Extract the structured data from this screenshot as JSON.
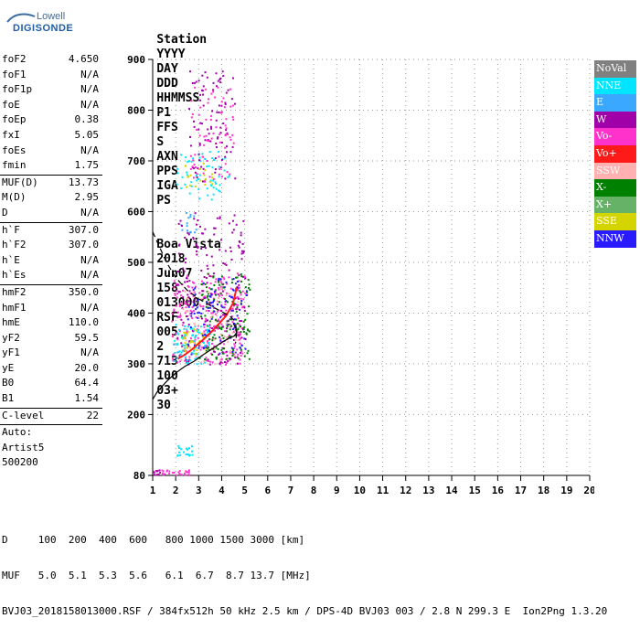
{
  "logo": {
    "line1": "Lowell",
    "line2": "DIGISONDE"
  },
  "header": {
    "row1": [
      {
        "label": "Station"
      },
      {
        "label": "YYYY"
      },
      {
        "label": "DAY"
      },
      {
        "label": "DDD"
      },
      {
        "label": "HHMMSS"
      },
      {
        "label": "P1"
      },
      {
        "label": "FFS"
      },
      {
        "label": "S"
      },
      {
        "label": "AXN"
      },
      {
        "label": "PPS"
      },
      {
        "label": "IGA"
      },
      {
        "label": "PS"
      }
    ],
    "row2": [
      {
        "label": "Boa Vista"
      },
      {
        "label": "2018"
      },
      {
        "label": "Jun07"
      },
      {
        "label": "158"
      },
      {
        "label": "013000"
      },
      {
        "label": "RSF"
      },
      {
        "label": "005"
      },
      {
        "label": "2"
      },
      {
        "label": "713"
      },
      {
        "label": "100"
      },
      {
        "label": "03+"
      },
      {
        "label": "30"
      }
    ]
  },
  "params_groups": [
    [
      {
        "name": "foF2",
        "value": "4.650"
      },
      {
        "name": "foF1",
        "value": "N/A"
      },
      {
        "name": "foF1p",
        "value": "N/A"
      },
      {
        "name": "foE",
        "value": "N/A"
      },
      {
        "name": "foEp",
        "value": "0.38"
      },
      {
        "name": "fxI",
        "value": "5.05"
      },
      {
        "name": "foEs",
        "value": "N/A"
      },
      {
        "name": "fmin",
        "value": "1.75"
      }
    ],
    [
      {
        "name": "MUF(D)",
        "value": "13.73"
      },
      {
        "name": "M(D)",
        "value": "2.95"
      },
      {
        "name": "D",
        "value": "N/A"
      }
    ],
    [
      {
        "name": "h`F",
        "value": "307.0"
      },
      {
        "name": "h`F2",
        "value": "307.0"
      },
      {
        "name": "h`E",
        "value": "N/A"
      },
      {
        "name": "h`Es",
        "value": "N/A"
      }
    ],
    [
      {
        "name": "hmF2",
        "value": "350.0"
      },
      {
        "name": "hmF1",
        "value": "N/A"
      },
      {
        "name": "hmE",
        "value": "110.0"
      },
      {
        "name": "yF2",
        "value": "59.5"
      },
      {
        "name": "yF1",
        "value": "N/A"
      },
      {
        "name": "yE",
        "value": "20.0"
      },
      {
        "name": "B0",
        "value": "64.4"
      },
      {
        "name": "B1",
        "value": "1.54"
      }
    ],
    [
      {
        "name": "C-level",
        "value": "22"
      }
    ],
    [
      {
        "name": "Auto:",
        "value": ""
      },
      {
        "name": "Artist5",
        "value": ""
      },
      {
        "name": "500200",
        "value": ""
      }
    ]
  ],
  "legend": [
    {
      "label": "NoVal",
      "color": "#808080"
    },
    {
      "label": "NNE",
      "color": "#00e5ff"
    },
    {
      "label": "E",
      "color": "#3aa8ff"
    },
    {
      "label": "W",
      "color": "#a000a8"
    },
    {
      "label": "Vo-",
      "color": "#ff33cc"
    },
    {
      "label": "Vo+",
      "color": "#ff1a1a"
    },
    {
      "label": "SSW",
      "color": "#ffb0b0"
    },
    {
      "label": "X-",
      "color": "#008000"
    },
    {
      "label": "X+",
      "color": "#66b266"
    },
    {
      "label": "SSE",
      "color": "#d4d400"
    },
    {
      "label": "NNW",
      "color": "#2a1aff"
    }
  ],
  "footer": {
    "line1": "D     100  200  400  600   800 1000 1500 3000 [km]",
    "line2": "MUF   5.0  5.1  5.3  5.6   6.1  6.7  8.7 13.7 [MHz]",
    "line3": "BVJ03_2018158013000.RSF / 384fx512h 50 kHz 2.5 km / DPS-4D BVJ03 003 / 2.8 N 299.3 E  Ion2Png 1.3.20"
  },
  "chart_data": {
    "type": "scatter",
    "title": "",
    "xlabel": "",
    "ylabel": "",
    "xlim": [
      1,
      20
    ],
    "ylim": [
      80,
      900
    ],
    "x_ticks": [
      1,
      2,
      3,
      4,
      5,
      6,
      7,
      8,
      9,
      10,
      11,
      12,
      13,
      14,
      15,
      16,
      17,
      18,
      19,
      20
    ],
    "y_ticks": [
      80,
      200,
      300,
      400,
      500,
      600,
      700,
      800,
      900
    ],
    "grid": true,
    "legend_placement": "right",
    "clusters": [
      {
        "color": "#00e5ff",
        "x": [
          2.0,
          4.3
        ],
        "y": [
          625,
          720
        ],
        "n": 60
      },
      {
        "color": "#a000a8",
        "x": [
          2.5,
          4.6
        ],
        "y": [
          660,
          880
        ],
        "n": 90
      },
      {
        "color": "#ff33cc",
        "x": [
          2.6,
          4.5
        ],
        "y": [
          660,
          850
        ],
        "n": 70
      },
      {
        "color": "#d4d400",
        "x": [
          2.2,
          3.6
        ],
        "y": [
          650,
          700
        ],
        "n": 20
      },
      {
        "color": "#3aa8ff",
        "x": [
          2.2,
          2.9
        ],
        "y": [
          560,
          600
        ],
        "n": 15
      },
      {
        "color": "#ff33cc",
        "x": [
          1.8,
          5.0
        ],
        "y": [
          300,
          480
        ],
        "n": 260
      },
      {
        "color": "#a000a8",
        "x": [
          2.0,
          5.0
        ],
        "y": [
          300,
          600
        ],
        "n": 200
      },
      {
        "color": "#008000",
        "x": [
          3.0,
          5.2
        ],
        "y": [
          310,
          480
        ],
        "n": 140
      },
      {
        "color": "#00e5ff",
        "x": [
          1.9,
          3.5
        ],
        "y": [
          300,
          380
        ],
        "n": 80
      },
      {
        "color": "#d4d400",
        "x": [
          2.3,
          3.3
        ],
        "y": [
          320,
          370
        ],
        "n": 40
      },
      {
        "color": "#2a1aff",
        "x": [
          2.5,
          5.1
        ],
        "y": [
          320,
          470
        ],
        "n": 90
      },
      {
        "color": "#ffb0b0",
        "x": [
          2.2,
          4.8
        ],
        "y": [
          300,
          450
        ],
        "n": 60
      },
      {
        "color": "#00e5ff",
        "x": [
          2.0,
          2.7
        ],
        "y": [
          120,
          140
        ],
        "n": 20
      },
      {
        "color": "#ff33cc",
        "x": [
          1.0,
          2.6
        ],
        "y": [
          82,
          92
        ],
        "n": 30
      },
      {
        "color": "#a000a8",
        "x": [
          1.0,
          1.3
        ],
        "y": [
          82,
          92
        ],
        "n": 8
      }
    ],
    "trace_red_x": [
      2.1,
      2.4,
      2.7,
      3.0,
      3.3,
      3.6,
      3.9,
      4.2,
      4.5,
      4.65
    ],
    "trace_red_y": [
      310,
      318,
      328,
      340,
      352,
      365,
      380,
      395,
      420,
      450
    ],
    "profile_solid_x": [
      1.0,
      1.2,
      1.6,
      2.0,
      2.4,
      2.8,
      3.2,
      3.6,
      4.0,
      4.3,
      4.55,
      4.65,
      4.6,
      4.5
    ],
    "profile_solid_y": [
      230,
      245,
      265,
      282,
      295,
      305,
      318,
      330,
      342,
      350,
      355,
      362,
      372,
      380
    ],
    "profile_dashed_x": [
      1.0,
      1.2,
      1.6,
      2.0,
      2.5,
      3.0,
      3.5,
      3.9,
      4.2,
      4.4,
      4.6,
      4.65,
      4.6
    ],
    "profile_dashed_y": [
      560,
      540,
      500,
      470,
      445,
      428,
      415,
      405,
      398,
      392,
      383,
      360,
      340
    ]
  }
}
